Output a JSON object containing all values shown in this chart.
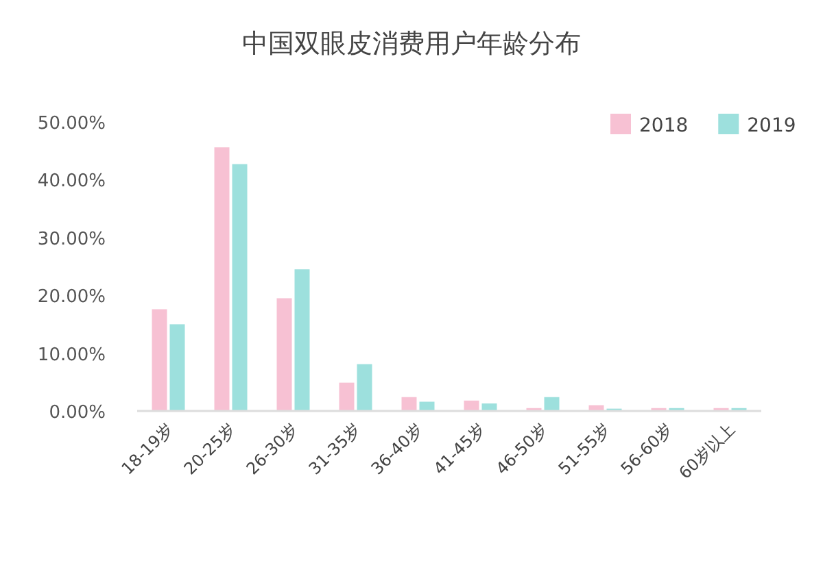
{
  "chart_data": {
    "type": "bar",
    "title": "中国双眼皮消费用户年龄分布",
    "categories": [
      "18-19岁",
      "20-25岁",
      "26-30岁",
      "31-35岁",
      "36-40岁",
      "41-45岁",
      "46-50岁",
      "51-55岁",
      "56-60岁",
      "60岁以上"
    ],
    "series": [
      {
        "name": "2018",
        "color": "#f7c1d3",
        "values": [
          17.6,
          45.6,
          19.5,
          4.9,
          2.4,
          1.8,
          0.5,
          1.0,
          0.5,
          0.5
        ]
      },
      {
        "name": "2019",
        "color": "#9de0dd",
        "values": [
          15.0,
          42.7,
          24.5,
          8.1,
          1.6,
          1.3,
          2.4,
          0.4,
          0.5,
          0.5
        ]
      }
    ],
    "ylim": [
      0,
      50
    ],
    "yticks": [
      {
        "value": 0,
        "label": "0.00%"
      },
      {
        "value": 10,
        "label": "10.00%"
      },
      {
        "value": 20,
        "label": "20.00%"
      },
      {
        "value": 30,
        "label": "30.00%"
      },
      {
        "value": 40,
        "label": "40.00%"
      },
      {
        "value": 50,
        "label": "50.00%"
      }
    ],
    "grid": false,
    "legend": "top right"
  }
}
